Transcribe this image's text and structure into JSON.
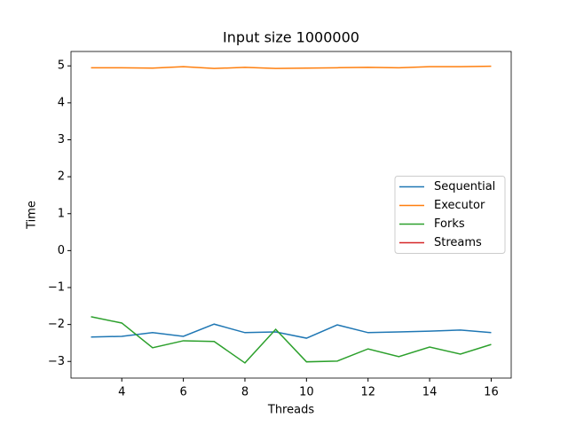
{
  "chart_data": {
    "type": "line",
    "title": "Input size 1000000",
    "xlabel": "Threads",
    "ylabel": "Time",
    "x": [
      3,
      4,
      5,
      6,
      7,
      8,
      9,
      10,
      11,
      12,
      13,
      14,
      15,
      16
    ],
    "series": [
      {
        "name": "Sequential",
        "color": "#1f77b4",
        "values": [
          -2.34,
          -2.32,
          -2.22,
          -2.32,
          -1.99,
          -2.22,
          -2.2,
          -2.37,
          -2.01,
          -2.22,
          -2.2,
          -2.18,
          -2.15,
          -2.22
        ]
      },
      {
        "name": "Executor",
        "color": "#ff7f0e",
        "values": [
          4.95,
          4.95,
          4.94,
          4.98,
          4.93,
          4.96,
          4.93,
          4.94,
          4.95,
          4.96,
          4.95,
          4.98,
          4.98,
          4.99
        ]
      },
      {
        "name": "Forks",
        "color": "#2ca02c",
        "values": [
          -1.79,
          -1.96,
          -2.63,
          -2.44,
          -2.46,
          -3.04,
          -2.13,
          -3.01,
          -2.99,
          -2.66,
          -2.87,
          -2.61,
          -2.8,
          -2.54
        ]
      },
      {
        "name": "Streams",
        "color": "#d62728",
        "values": [
          null,
          null,
          null,
          null,
          null,
          null,
          null,
          null,
          null,
          null,
          null,
          null,
          null,
          null
        ]
      }
    ],
    "xlim": [
      2.35,
      16.65
    ],
    "xticks": [
      4,
      6,
      8,
      10,
      12,
      14,
      16
    ],
    "ylim": [
      -3.45,
      5.39
    ],
    "yticks": [
      {
        "value": -3,
        "label": "−3"
      },
      {
        "value": -2,
        "label": "−2"
      },
      {
        "value": -1,
        "label": "−1"
      },
      0,
      1,
      2,
      3,
      4,
      5
    ],
    "legend": "center right",
    "grid": false
  }
}
